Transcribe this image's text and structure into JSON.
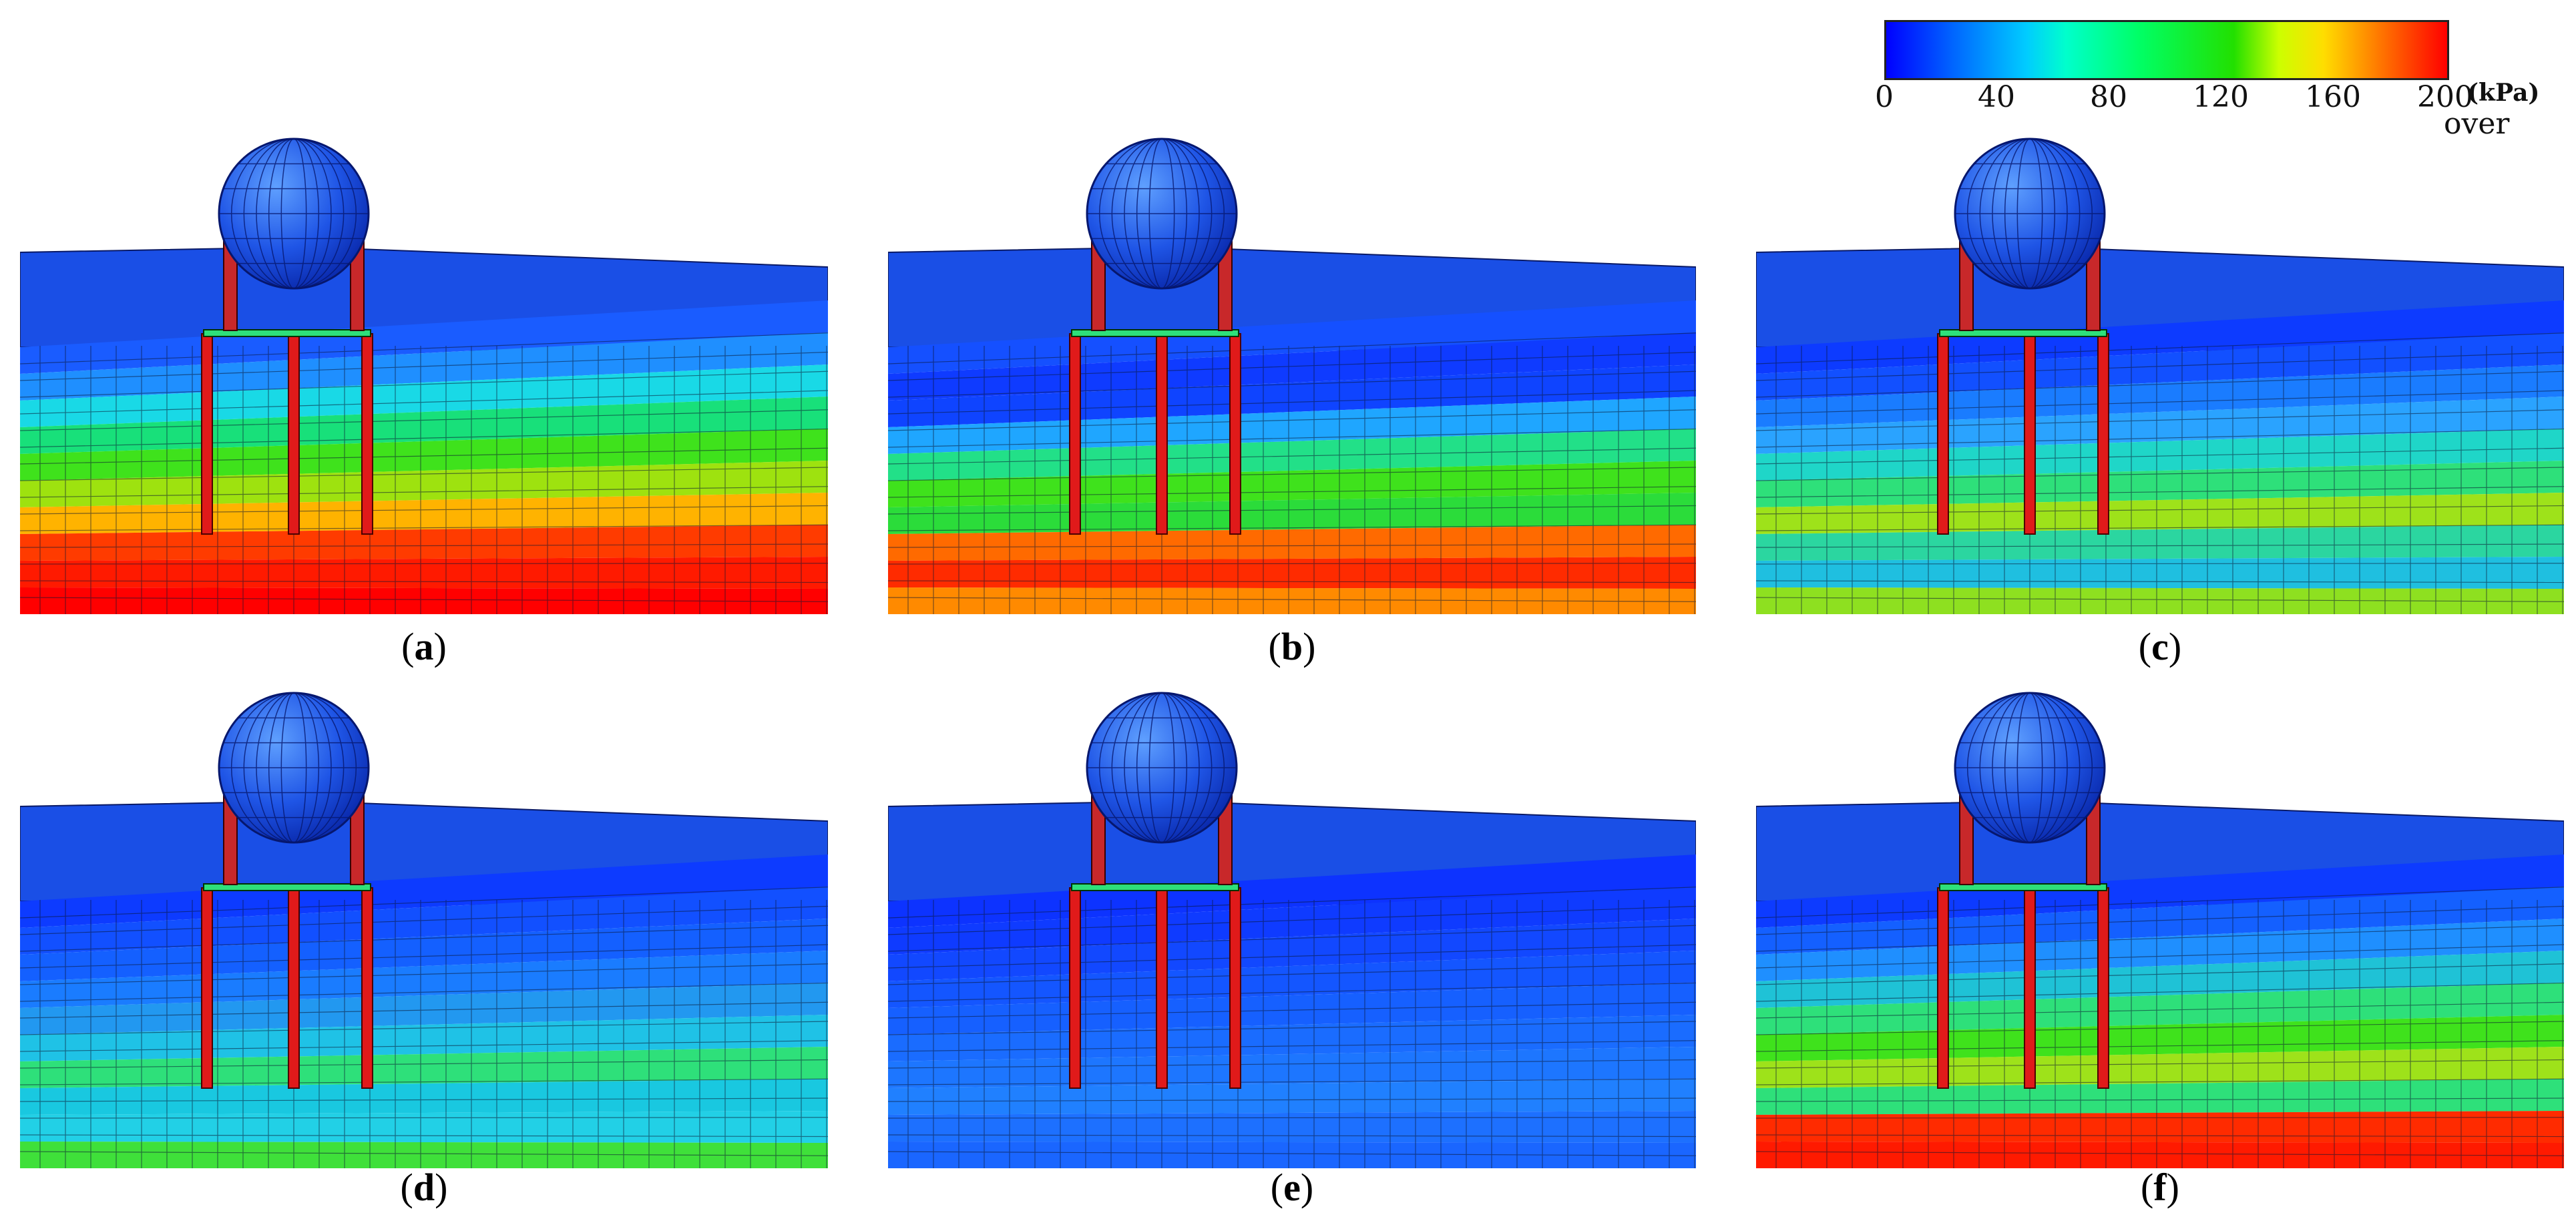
{
  "colorbar": {
    "ticks": [
      "0",
      "40",
      "80",
      "120",
      "160",
      "200"
    ],
    "unit": "(kPa)",
    "over_label": "over",
    "gradient_colors": [
      "#0000ff",
      "#00ccff",
      "#00ff66",
      "#ccff00",
      "#ff7700",
      "#ff0000"
    ]
  },
  "panels": [
    {
      "label": "a",
      "bands": [
        "#1a5cff",
        "#1f8fff",
        "#19d9e6",
        "#18e07a",
        "#3fe21c",
        "#9ee20f",
        "#ffb300",
        "#ff3b00",
        "#ff1a00",
        "#ff0000"
      ]
    },
    {
      "label": "b",
      "bands": [
        "#1550ff",
        "#0f3bff",
        "#0f44ff",
        "#1fa6ff",
        "#22e088",
        "#3fe21c",
        "#2bdc3a",
        "#ff6a00",
        "#ff2b00",
        "#ff8a00"
      ]
    },
    {
      "label": "c",
      "bands": [
        "#0d3bff",
        "#1250ff",
        "#1a7cff",
        "#2aa3ff",
        "#1fd6c8",
        "#2ee07a",
        "#9ee21a",
        "#2bd6a0",
        "#1fbfe0",
        "#8ee020"
      ]
    },
    {
      "label": "d",
      "bands": [
        "#0d3bff",
        "#1250ff",
        "#1460ff",
        "#1a7cff",
        "#2298f0",
        "#1fc2e6",
        "#2ee07a",
        "#19c8e0",
        "#22d0e6",
        "#3fe03a"
      ]
    },
    {
      "label": "e",
      "bands": [
        "#0d33ff",
        "#0f3bff",
        "#1248ff",
        "#1456ff",
        "#1660ff",
        "#1a6cff",
        "#1d76ff",
        "#2080ff",
        "#1d70ff",
        "#1a66ff"
      ]
    },
    {
      "label": "f",
      "bands": [
        "#0d3bff",
        "#1460ff",
        "#1f8fff",
        "#1fc2d6",
        "#2ee07a",
        "#3fe21c",
        "#9ee21a",
        "#2ee07a",
        "#ff2b00",
        "#ff1a00"
      ]
    }
  ]
}
